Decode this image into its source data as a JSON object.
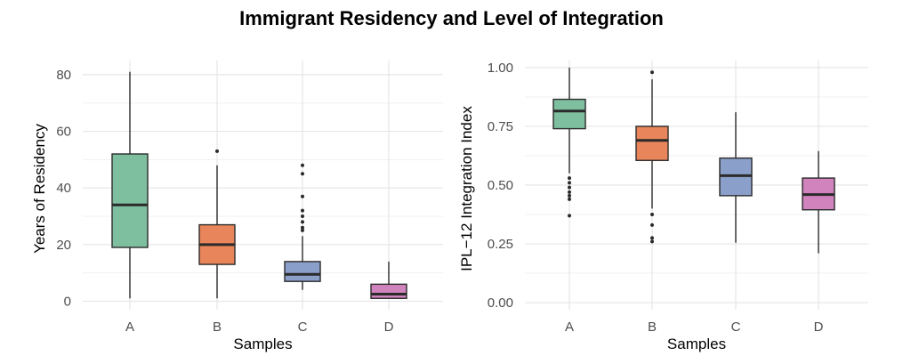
{
  "title": "Immigrant Residency and Level of Integration",
  "colors": {
    "A": "#7dbf9e",
    "B": "#e8855a",
    "C": "#8b9fcb",
    "D": "#d083bd",
    "outline": "#2b2b2b",
    "grid": "#e5e5e5"
  },
  "chart_data": [
    {
      "type": "box",
      "xlabel": "Samples",
      "ylabel": "Years of Residency",
      "ylim": [
        -3,
        85
      ],
      "yticks": [
        0,
        20,
        40,
        60,
        80
      ],
      "ytick_labels": [
        "0",
        "20",
        "40",
        "60",
        "80"
      ],
      "grid": true,
      "categories": [
        "A",
        "B",
        "C",
        "D"
      ],
      "boxes": [
        {
          "category": "A",
          "min": 1,
          "q1": 19,
          "median": 34,
          "q3": 52,
          "max": 81,
          "outliers": []
        },
        {
          "category": "B",
          "min": 1,
          "q1": 13,
          "median": 20,
          "q3": 27,
          "max": 48,
          "outliers": [
            53
          ]
        },
        {
          "category": "C",
          "min": 4,
          "q1": 7,
          "median": 9.5,
          "q3": 14,
          "max": 23,
          "outliers": [
            25,
            26,
            28,
            30,
            32,
            37,
            45,
            48
          ]
        },
        {
          "category": "D",
          "min": 1,
          "q1": 1,
          "median": 2.5,
          "q3": 6,
          "max": 14,
          "outliers": []
        }
      ]
    },
    {
      "type": "box",
      "xlabel": "Samples",
      "ylabel": "IPL−12 Integration Index",
      "ylim": [
        -0.03,
        1.03
      ],
      "yticks": [
        0,
        0.25,
        0.5,
        0.75,
        1.0
      ],
      "ytick_labels": [
        "0.00",
        "0.25",
        "0.50",
        "0.75",
        "1.00"
      ],
      "grid": true,
      "categories": [
        "A",
        "B",
        "C",
        "D"
      ],
      "boxes": [
        {
          "category": "A",
          "min": 0.55,
          "q1": 0.74,
          "median": 0.815,
          "q3": 0.865,
          "max": 1.0,
          "outliers": [
            0.37,
            0.44,
            0.455,
            0.47,
            0.49,
            0.51,
            0.53
          ]
        },
        {
          "category": "B",
          "min": 0.4,
          "q1": 0.605,
          "median": 0.69,
          "q3": 0.75,
          "max": 0.95,
          "outliers": [
            0.26,
            0.275,
            0.33,
            0.375,
            0.98
          ]
        },
        {
          "category": "C",
          "min": 0.255,
          "q1": 0.455,
          "median": 0.54,
          "q3": 0.615,
          "max": 0.81,
          "outliers": []
        },
        {
          "category": "D",
          "min": 0.21,
          "q1": 0.395,
          "median": 0.46,
          "q3": 0.53,
          "max": 0.645,
          "outliers": []
        }
      ]
    }
  ]
}
